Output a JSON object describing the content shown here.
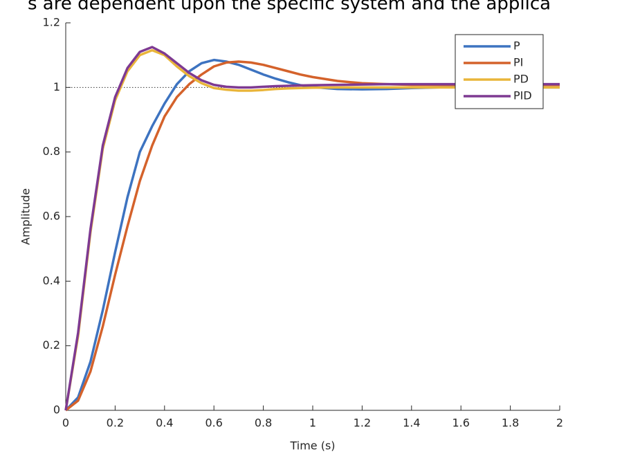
{
  "header_text": "s are dependent upon the specific system and the applica",
  "chart_data": {
    "type": "line",
    "x_label": "Time (s)",
    "y_label": "Amplitude",
    "x": [
      0,
      0.05,
      0.1,
      0.15,
      0.2,
      0.25,
      0.3,
      0.35,
      0.4,
      0.45,
      0.5,
      0.55,
      0.6,
      0.65,
      0.7,
      0.75,
      0.8,
      0.85,
      0.9,
      0.95,
      1,
      1.1,
      1.2,
      1.3,
      1.4,
      1.5,
      1.6,
      1.7,
      1.8,
      1.9,
      2
    ],
    "series": [
      {
        "name": "P",
        "color": "#3d73c0",
        "values": [
          0,
          0.04,
          0.15,
          0.31,
          0.49,
          0.66,
          0.8,
          0.88,
          0.95,
          1.01,
          1.05,
          1.075,
          1.085,
          1.08,
          1.07,
          1.055,
          1.04,
          1.027,
          1.016,
          1.007,
          1.001,
          0.995,
          0.994,
          0.995,
          0.998,
          1,
          1.001,
          1.001,
          1,
          1,
          1
        ]
      },
      {
        "name": "PI",
        "color": "#d4622b",
        "values": [
          0,
          0.03,
          0.12,
          0.26,
          0.42,
          0.57,
          0.71,
          0.82,
          0.91,
          0.97,
          1.01,
          1.04,
          1.065,
          1.077,
          1.08,
          1.077,
          1.07,
          1.06,
          1.05,
          1.04,
          1.032,
          1.02,
          1.013,
          1.01,
          1.008,
          1.008,
          1.008,
          1.008,
          1.008,
          1.008,
          1.008
        ]
      },
      {
        "name": "PD",
        "color": "#e9b53a",
        "values": [
          0,
          0.23,
          0.55,
          0.81,
          0.96,
          1.05,
          1.1,
          1.115,
          1.1,
          1.065,
          1.035,
          1.013,
          0.998,
          0.993,
          0.99,
          0.99,
          0.992,
          0.995,
          0.997,
          0.998,
          0.999,
          1,
          1,
          1,
          1,
          1,
          1,
          1,
          1,
          1,
          1
        ]
      },
      {
        "name": "PID",
        "color": "#7e3a92",
        "values": [
          0,
          0.24,
          0.56,
          0.82,
          0.97,
          1.06,
          1.11,
          1.125,
          1.105,
          1.075,
          1.045,
          1.022,
          1.008,
          1.002,
          1,
          1,
          1.002,
          1.004,
          1.005,
          1.006,
          1.007,
          1.008,
          1.009,
          1.01,
          1.01,
          1.01,
          1.01,
          1.01,
          1.01,
          1.01,
          1.01
        ]
      }
    ],
    "xlim": [
      0,
      2
    ],
    "ylim": [
      0,
      1.2
    ],
    "xticks": [
      0,
      0.2,
      0.4,
      0.6,
      0.8,
      1,
      1.2,
      1.4,
      1.6,
      1.8,
      2
    ],
    "yticks": [
      0,
      0.2,
      0.4,
      0.6,
      0.8,
      1,
      1.2
    ],
    "reference_line": 1,
    "legend": "top-right",
    "grid": false
  }
}
